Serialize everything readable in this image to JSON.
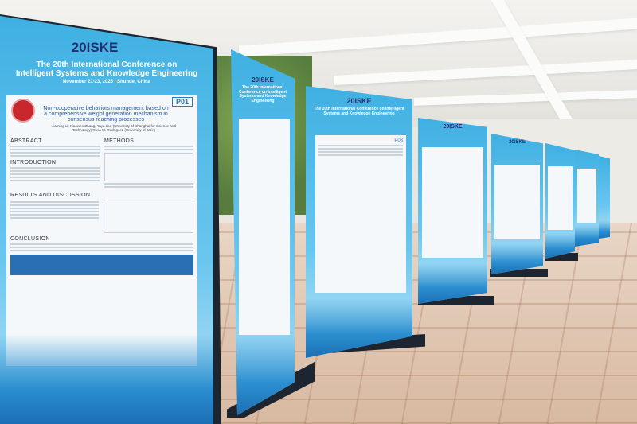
{
  "poster_main": {
    "logo": "20ISKE",
    "conference_title_1": "The 20th International Conference on",
    "conference_title_2": "Intelligent Systems and Knowledge Engineering",
    "date_place": "November 21-23, 2025 | Shunde, China",
    "poster_id": "P01",
    "paper_title": "Non-cooperative behaviors management based on a comprehensive weight generation mechanism in consensus reaching processes",
    "authors": "Jiaming Li, Xiaowen Zhang, Yaya Liu* (University of Shanghai for Science and Technology) Rosa M. Rodríguez (University of Jaén)",
    "sections": [
      "ABSTRACT",
      "METHODS",
      "INTRODUCTION",
      "RESULTS AND DISCUSSION",
      "CONCLUSION"
    ]
  },
  "other_posters": [
    {
      "logo": "20ISKE",
      "title": "The 20th International Conference on Intelligent Systems and Knowledge Engineering"
    },
    {
      "logo": "20ISKE",
      "title": "The 20th International Conference on Intelligent Systems and Knowledge Engineering",
      "id": "P03"
    },
    {
      "logo": "20ISKE"
    },
    {
      "logo": "20ISKE"
    }
  ],
  "colors": {
    "poster_blue": "#3fb0e2",
    "logo_navy": "#23306f",
    "stand": "#1d2630"
  }
}
